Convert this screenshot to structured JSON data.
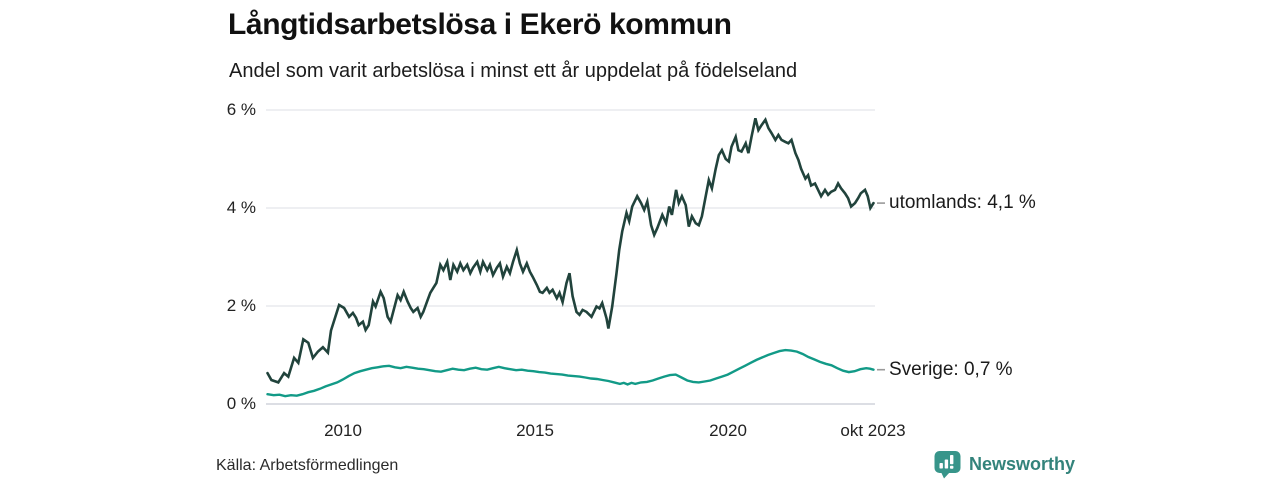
{
  "header": {
    "title": "Långtidsarbetslösa i Ekerö kommun",
    "subtitle": "Andel som varit arbetslösa i minst ett år uppdelat på födelseland"
  },
  "footer": {
    "source": "Källa: Arbetsförmedlingen",
    "brand": "Newsworthy"
  },
  "colors": {
    "grid": "#e4e5eb",
    "axis": "#c7cbd4",
    "utomlands_line": "#21433c",
    "sverige_line": "#129a87",
    "annotation_dash": "#9a9a9a",
    "brand_teal": "#33837b"
  },
  "chart_data": {
    "type": "line",
    "title": "Långtidsarbetslösa i Ekerö kommun",
    "subtitle": "Andel som varit arbetslösa i minst ett år uppdelat på födelseland",
    "unit": "%",
    "grid": true,
    "x_axis": {
      "range": [
        2008.0,
        2023.83
      ],
      "ticks": [
        {
          "x": 2010.0,
          "label": "2010"
        },
        {
          "x": 2015.0,
          "label": "2015"
        },
        {
          "x": 2020.0,
          "label": "2020"
        },
        {
          "x": 2023.79,
          "label": "okt 2023"
        }
      ]
    },
    "y_axis": {
      "range": [
        0,
        6
      ],
      "ticks": [
        {
          "v": 0,
          "label": "0 %"
        },
        {
          "v": 2,
          "label": "2 %"
        },
        {
          "v": 4,
          "label": "4 %"
        },
        {
          "v": 6,
          "label": "6 %"
        }
      ]
    },
    "series": [
      {
        "name": "utomlands",
        "color": "#21433c",
        "stroke_width": 2.6,
        "end_value": 4.1,
        "end_label": "utomlands: 4,1 %",
        "points": [
          [
            2008.04,
            0.63
          ],
          [
            2008.14,
            0.49
          ],
          [
            2008.32,
            0.44
          ],
          [
            2008.47,
            0.63
          ],
          [
            2008.58,
            0.56
          ],
          [
            2008.73,
            0.94
          ],
          [
            2008.84,
            0.84
          ],
          [
            2008.97,
            1.32
          ],
          [
            2009.1,
            1.25
          ],
          [
            2009.22,
            0.94
          ],
          [
            2009.35,
            1.07
          ],
          [
            2009.48,
            1.16
          ],
          [
            2009.61,
            1.05
          ],
          [
            2009.69,
            1.5
          ],
          [
            2009.9,
            2.02
          ],
          [
            2010.03,
            1.96
          ],
          [
            2010.16,
            1.78
          ],
          [
            2010.26,
            1.86
          ],
          [
            2010.34,
            1.76
          ],
          [
            2010.41,
            1.61
          ],
          [
            2010.52,
            1.68
          ],
          [
            2010.59,
            1.51
          ],
          [
            2010.67,
            1.61
          ],
          [
            2010.78,
            2.09
          ],
          [
            2010.85,
            1.99
          ],
          [
            2010.98,
            2.29
          ],
          [
            2011.06,
            2.16
          ],
          [
            2011.16,
            1.78
          ],
          [
            2011.24,
            1.68
          ],
          [
            2011.32,
            1.92
          ],
          [
            2011.42,
            2.22
          ],
          [
            2011.5,
            2.12
          ],
          [
            2011.58,
            2.29
          ],
          [
            2011.68,
            2.09
          ],
          [
            2011.76,
            1.96
          ],
          [
            2011.83,
            1.88
          ],
          [
            2011.94,
            1.96
          ],
          [
            2012.02,
            1.78
          ],
          [
            2012.09,
            1.88
          ],
          [
            2012.2,
            2.12
          ],
          [
            2012.27,
            2.27
          ],
          [
            2012.35,
            2.37
          ],
          [
            2012.43,
            2.47
          ],
          [
            2012.53,
            2.84
          ],
          [
            2012.61,
            2.73
          ],
          [
            2012.71,
            2.9
          ],
          [
            2012.79,
            2.53
          ],
          [
            2012.87,
            2.84
          ],
          [
            2012.97,
            2.7
          ],
          [
            2013.05,
            2.87
          ],
          [
            2013.13,
            2.73
          ],
          [
            2013.23,
            2.84
          ],
          [
            2013.31,
            2.67
          ],
          [
            2013.38,
            2.78
          ],
          [
            2013.49,
            2.9
          ],
          [
            2013.57,
            2.7
          ],
          [
            2013.64,
            2.9
          ],
          [
            2013.75,
            2.73
          ],
          [
            2013.82,
            2.84
          ],
          [
            2013.9,
            2.63
          ],
          [
            2014.0,
            2.78
          ],
          [
            2014.08,
            2.87
          ],
          [
            2014.16,
            2.6
          ],
          [
            2014.26,
            2.8
          ],
          [
            2014.34,
            2.67
          ],
          [
            2014.42,
            2.9
          ],
          [
            2014.52,
            3.14
          ],
          [
            2014.6,
            2.87
          ],
          [
            2014.68,
            2.7
          ],
          [
            2014.78,
            2.87
          ],
          [
            2014.86,
            2.7
          ],
          [
            2014.93,
            2.6
          ],
          [
            2015.04,
            2.43
          ],
          [
            2015.12,
            2.29
          ],
          [
            2015.19,
            2.27
          ],
          [
            2015.3,
            2.37
          ],
          [
            2015.37,
            2.27
          ],
          [
            2015.45,
            2.33
          ],
          [
            2015.56,
            2.16
          ],
          [
            2015.63,
            2.27
          ],
          [
            2015.71,
            2.08
          ],
          [
            2015.81,
            2.47
          ],
          [
            2015.89,
            2.67
          ],
          [
            2015.97,
            2.2
          ],
          [
            2016.07,
            1.88
          ],
          [
            2016.15,
            1.82
          ],
          [
            2016.23,
            1.92
          ],
          [
            2016.33,
            1.88
          ],
          [
            2016.46,
            1.78
          ],
          [
            2016.59,
            1.99
          ],
          [
            2016.67,
            1.95
          ],
          [
            2016.74,
            2.06
          ],
          [
            2016.85,
            1.75
          ],
          [
            2016.9,
            1.54
          ],
          [
            2017.0,
            1.99
          ],
          [
            2017.11,
            2.67
          ],
          [
            2017.18,
            3.14
          ],
          [
            2017.26,
            3.52
          ],
          [
            2017.37,
            3.9
          ],
          [
            2017.44,
            3.73
          ],
          [
            2017.52,
            4.03
          ],
          [
            2017.65,
            4.24
          ],
          [
            2017.75,
            4.1
          ],
          [
            2017.83,
            3.96
          ],
          [
            2017.91,
            4.13
          ],
          [
            2018.01,
            3.65
          ],
          [
            2018.09,
            3.45
          ],
          [
            2018.17,
            3.59
          ],
          [
            2018.3,
            3.86
          ],
          [
            2018.4,
            3.69
          ],
          [
            2018.48,
            4.03
          ],
          [
            2018.55,
            3.86
          ],
          [
            2018.66,
            4.37
          ],
          [
            2018.73,
            4.1
          ],
          [
            2018.81,
            4.24
          ],
          [
            2018.91,
            4.06
          ],
          [
            2018.99,
            3.62
          ],
          [
            2019.07,
            3.83
          ],
          [
            2019.17,
            3.69
          ],
          [
            2019.25,
            3.65
          ],
          [
            2019.33,
            3.83
          ],
          [
            2019.43,
            4.24
          ],
          [
            2019.51,
            4.57
          ],
          [
            2019.59,
            4.4
          ],
          [
            2019.69,
            4.8
          ],
          [
            2019.77,
            5.08
          ],
          [
            2019.85,
            5.18
          ],
          [
            2019.95,
            5.0
          ],
          [
            2020.03,
            4.95
          ],
          [
            2020.1,
            5.25
          ],
          [
            2020.21,
            5.45
          ],
          [
            2020.28,
            5.18
          ],
          [
            2020.36,
            5.15
          ],
          [
            2020.47,
            5.32
          ],
          [
            2020.54,
            5.12
          ],
          [
            2020.62,
            5.45
          ],
          [
            2020.72,
            5.83
          ],
          [
            2020.8,
            5.59
          ],
          [
            2020.88,
            5.69
          ],
          [
            2020.98,
            5.8
          ],
          [
            2021.06,
            5.63
          ],
          [
            2021.14,
            5.53
          ],
          [
            2021.24,
            5.39
          ],
          [
            2021.32,
            5.49
          ],
          [
            2021.4,
            5.39
          ],
          [
            2021.5,
            5.35
          ],
          [
            2021.58,
            5.32
          ],
          [
            2021.66,
            5.39
          ],
          [
            2021.76,
            5.12
          ],
          [
            2021.84,
            4.98
          ],
          [
            2021.91,
            4.8
          ],
          [
            2022.02,
            4.6
          ],
          [
            2022.09,
            4.67
          ],
          [
            2022.17,
            4.46
          ],
          [
            2022.27,
            4.5
          ],
          [
            2022.35,
            4.37
          ],
          [
            2022.43,
            4.24
          ],
          [
            2022.53,
            4.37
          ],
          [
            2022.61,
            4.27
          ],
          [
            2022.69,
            4.33
          ],
          [
            2022.79,
            4.37
          ],
          [
            2022.87,
            4.5
          ],
          [
            2022.95,
            4.4
          ],
          [
            2023.05,
            4.3
          ],
          [
            2023.13,
            4.2
          ],
          [
            2023.21,
            4.03
          ],
          [
            2023.31,
            4.1
          ],
          [
            2023.39,
            4.2
          ],
          [
            2023.46,
            4.3
          ],
          [
            2023.57,
            4.37
          ],
          [
            2023.64,
            4.24
          ],
          [
            2023.71,
            4.0
          ],
          [
            2023.79,
            4.1
          ]
        ]
      },
      {
        "name": "Sverige",
        "color": "#129a87",
        "stroke_width": 2.4,
        "end_value": 0.7,
        "end_label": "Sverige: 0,7 %",
        "points": [
          [
            2008.04,
            0.2
          ],
          [
            2008.2,
            0.18
          ],
          [
            2008.35,
            0.19
          ],
          [
            2008.5,
            0.16
          ],
          [
            2008.65,
            0.18
          ],
          [
            2008.8,
            0.17
          ],
          [
            2008.95,
            0.2
          ],
          [
            2009.1,
            0.24
          ],
          [
            2009.25,
            0.27
          ],
          [
            2009.4,
            0.31
          ],
          [
            2009.55,
            0.36
          ],
          [
            2009.7,
            0.4
          ],
          [
            2009.85,
            0.44
          ],
          [
            2010.0,
            0.5
          ],
          [
            2010.15,
            0.57
          ],
          [
            2010.3,
            0.63
          ],
          [
            2010.45,
            0.67
          ],
          [
            2010.6,
            0.7
          ],
          [
            2010.75,
            0.73
          ],
          [
            2010.9,
            0.75
          ],
          [
            2011.05,
            0.77
          ],
          [
            2011.2,
            0.78
          ],
          [
            2011.35,
            0.75
          ],
          [
            2011.5,
            0.73
          ],
          [
            2011.65,
            0.76
          ],
          [
            2011.8,
            0.74
          ],
          [
            2011.95,
            0.72
          ],
          [
            2012.1,
            0.71
          ],
          [
            2012.25,
            0.69
          ],
          [
            2012.4,
            0.67
          ],
          [
            2012.55,
            0.66
          ],
          [
            2012.7,
            0.69
          ],
          [
            2012.85,
            0.72
          ],
          [
            2013.0,
            0.7
          ],
          [
            2013.15,
            0.69
          ],
          [
            2013.3,
            0.72
          ],
          [
            2013.45,
            0.74
          ],
          [
            2013.6,
            0.71
          ],
          [
            2013.75,
            0.7
          ],
          [
            2013.9,
            0.73
          ],
          [
            2014.05,
            0.76
          ],
          [
            2014.2,
            0.73
          ],
          [
            2014.35,
            0.71
          ],
          [
            2014.5,
            0.69
          ],
          [
            2014.65,
            0.7
          ],
          [
            2014.8,
            0.68
          ],
          [
            2014.95,
            0.67
          ],
          [
            2015.1,
            0.65
          ],
          [
            2015.25,
            0.64
          ],
          [
            2015.4,
            0.62
          ],
          [
            2015.55,
            0.61
          ],
          [
            2015.7,
            0.6
          ],
          [
            2015.85,
            0.58
          ],
          [
            2016.0,
            0.57
          ],
          [
            2016.15,
            0.56
          ],
          [
            2016.3,
            0.54
          ],
          [
            2016.45,
            0.52
          ],
          [
            2016.6,
            0.51
          ],
          [
            2016.75,
            0.49
          ],
          [
            2016.9,
            0.47
          ],
          [
            2017.05,
            0.44
          ],
          [
            2017.2,
            0.41
          ],
          [
            2017.3,
            0.43
          ],
          [
            2017.4,
            0.4
          ],
          [
            2017.5,
            0.43
          ],
          [
            2017.6,
            0.41
          ],
          [
            2017.75,
            0.44
          ],
          [
            2017.9,
            0.45
          ],
          [
            2018.05,
            0.48
          ],
          [
            2018.2,
            0.52
          ],
          [
            2018.35,
            0.56
          ],
          [
            2018.5,
            0.59
          ],
          [
            2018.65,
            0.6
          ],
          [
            2018.8,
            0.54
          ],
          [
            2018.95,
            0.48
          ],
          [
            2019.1,
            0.45
          ],
          [
            2019.25,
            0.44
          ],
          [
            2019.4,
            0.46
          ],
          [
            2019.55,
            0.48
          ],
          [
            2019.7,
            0.52
          ],
          [
            2019.85,
            0.56
          ],
          [
            2020.0,
            0.6
          ],
          [
            2020.15,
            0.66
          ],
          [
            2020.3,
            0.72
          ],
          [
            2020.45,
            0.78
          ],
          [
            2020.6,
            0.84
          ],
          [
            2020.75,
            0.9
          ],
          [
            2020.9,
            0.95
          ],
          [
            2021.05,
            1.0
          ],
          [
            2021.2,
            1.04
          ],
          [
            2021.35,
            1.08
          ],
          [
            2021.5,
            1.1
          ],
          [
            2021.65,
            1.09
          ],
          [
            2021.8,
            1.07
          ],
          [
            2021.95,
            1.02
          ],
          [
            2022.1,
            0.96
          ],
          [
            2022.25,
            0.91
          ],
          [
            2022.4,
            0.86
          ],
          [
            2022.55,
            0.82
          ],
          [
            2022.7,
            0.79
          ],
          [
            2022.85,
            0.73
          ],
          [
            2023.0,
            0.68
          ],
          [
            2023.15,
            0.65
          ],
          [
            2023.3,
            0.67
          ],
          [
            2023.45,
            0.71
          ],
          [
            2023.6,
            0.73
          ],
          [
            2023.7,
            0.72
          ],
          [
            2023.79,
            0.7
          ]
        ]
      }
    ]
  }
}
